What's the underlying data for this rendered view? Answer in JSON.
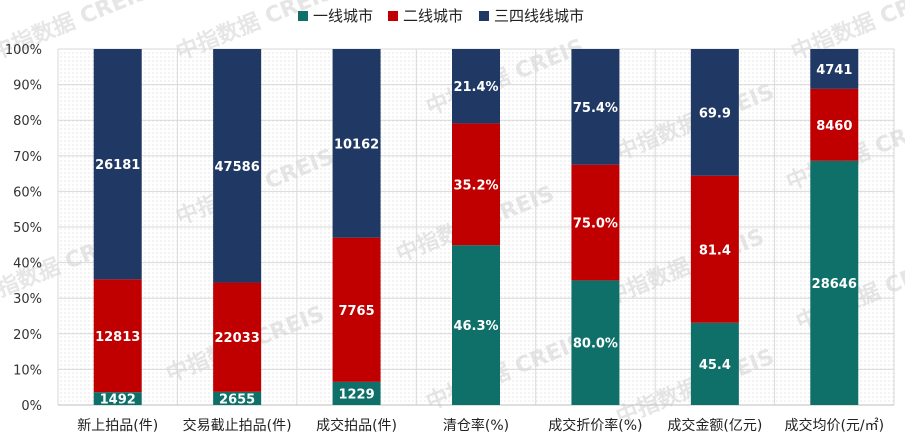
{
  "chart_data": {
    "type": "stacked-bar",
    "yticks": [
      "0%",
      "10%",
      "20%",
      "30%",
      "40%",
      "50%",
      "60%",
      "70%",
      "80%",
      "90%",
      "100%"
    ],
    "ylim": [
      0,
      100
    ],
    "grid": true,
    "legend_position": "top-right",
    "categories": [
      "新上拍品(件)",
      "交易截止拍品(件)",
      "成交拍品(件)",
      "清仓率(%)",
      "成交折价率(%)",
      "成交金额(亿元)",
      "成交均价(元/㎡)"
    ],
    "series": [
      {
        "name": "一线城市",
        "color": "#0e7068",
        "shares": [
          3.6,
          3.7,
          6.5,
          44.9,
          35.0,
          23.1,
          68.6
        ],
        "labels": [
          "1492",
          "2655",
          "1229",
          "46.3%",
          "80.0%",
          "45.4",
          "28646"
        ]
      },
      {
        "name": "二线城市",
        "color": "#c00000",
        "shares": [
          31.7,
          30.7,
          40.5,
          34.2,
          32.5,
          41.3,
          20.2
        ],
        "labels": [
          "12813",
          "22033",
          "7765",
          "35.2%",
          "75.0%",
          "81.4",
          "8460"
        ]
      },
      {
        "name": "三四线线城市",
        "color": "#1f3864",
        "shares": [
          64.7,
          65.6,
          53.0,
          20.9,
          32.5,
          35.6,
          11.2
        ],
        "labels": [
          "26181",
          "47586",
          "10162",
          "21.4%",
          "75.4%",
          "69.9",
          "4741"
        ]
      }
    ]
  },
  "watermark": {
    "text": "中指数据 CREIS"
  }
}
